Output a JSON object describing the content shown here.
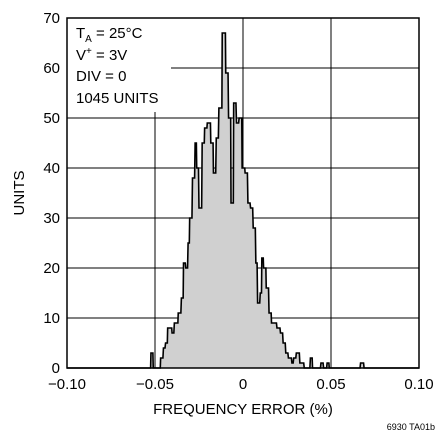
{
  "chart_data": {
    "type": "area",
    "xlabel": "FREQUENCY ERROR (%)",
    "ylabel": "UNITS",
    "xlim": [
      -0.1,
      0.1
    ],
    "ylim": [
      0,
      70
    ],
    "xticks": [
      "−0.10",
      "−0.05",
      "0",
      "0.05",
      "0.10"
    ],
    "xtick_values": [
      -0.1,
      -0.05,
      0,
      0.05,
      0.1
    ],
    "yticks": [
      "0",
      "10",
      "20",
      "30",
      "40",
      "50",
      "60",
      "70"
    ],
    "ytick_values": [
      0,
      10,
      20,
      30,
      40,
      50,
      60,
      70
    ],
    "grid": true,
    "fill_color": "#d0d0d0",
    "line_color": "#000000",
    "annotation": {
      "temp": "T",
      "temp_sub": "A",
      "temp_value": " = 25°C",
      "supply": "V",
      "supply_sup": "+",
      "supply_value": " = 3V",
      "div": "DIV = 0",
      "units": "1045 UNITS"
    },
    "figure_id": "6930 TA01b",
    "histogram": [
      [
        -0.1,
        0
      ],
      [
        -0.058,
        0
      ],
      [
        -0.0525,
        0
      ],
      [
        -0.0523,
        3
      ],
      [
        -0.0512,
        3
      ],
      [
        -0.051,
        0
      ],
      [
        -0.047,
        0
      ],
      [
        -0.0468,
        2
      ],
      [
        -0.0455,
        2
      ],
      [
        -0.0452,
        4
      ],
      [
        -0.0443,
        4
      ],
      [
        -0.044,
        5
      ],
      [
        -0.043,
        5
      ],
      [
        -0.0428,
        8
      ],
      [
        -0.0405,
        8
      ],
      [
        -0.0403,
        7
      ],
      [
        -0.0393,
        7
      ],
      [
        -0.039,
        9
      ],
      [
        -0.037,
        9
      ],
      [
        -0.0368,
        11
      ],
      [
        -0.0353,
        11
      ],
      [
        -0.035,
        14
      ],
      [
        -0.034,
        14
      ],
      [
        -0.0338,
        21
      ],
      [
        -0.0328,
        21
      ],
      [
        -0.0325,
        20
      ],
      [
        -0.0315,
        20
      ],
      [
        -0.0312,
        25
      ],
      [
        -0.0305,
        25
      ],
      [
        -0.0303,
        30
      ],
      [
        -0.029,
        30
      ],
      [
        -0.0287,
        38
      ],
      [
        -0.0275,
        38
      ],
      [
        -0.0272,
        45
      ],
      [
        -0.0265,
        45
      ],
      [
        -0.0263,
        40
      ],
      [
        -0.0253,
        40
      ],
      [
        -0.025,
        32
      ],
      [
        -0.0235,
        32
      ],
      [
        -0.0232,
        45
      ],
      [
        -0.022,
        45
      ],
      [
        -0.0218,
        48
      ],
      [
        -0.0205,
        48
      ],
      [
        -0.0203,
        49
      ],
      [
        -0.0185,
        49
      ],
      [
        -0.0183,
        45
      ],
      [
        -0.017,
        45
      ],
      [
        -0.0168,
        39
      ],
      [
        -0.0155,
        39
      ],
      [
        -0.0152,
        46
      ],
      [
        -0.014,
        46
      ],
      [
        -0.0137,
        52
      ],
      [
        -0.012,
        52
      ],
      [
        -0.0118,
        67
      ],
      [
        -0.01,
        67
      ],
      [
        -0.0098,
        59
      ],
      [
        -0.0085,
        59
      ],
      [
        -0.0082,
        50
      ],
      [
        -0.007,
        50
      ],
      [
        -0.0068,
        33
      ],
      [
        -0.0055,
        33
      ],
      [
        -0.0053,
        53
      ],
      [
        -0.004,
        53
      ],
      [
        -0.0037,
        49
      ],
      [
        -0.0025,
        49
      ],
      [
        -0.0022,
        50
      ],
      [
        -0.0007,
        50
      ],
      [
        -0.0005,
        40
      ],
      [
        0.001,
        40
      ],
      [
        0.0012,
        39
      ],
      [
        0.0025,
        39
      ],
      [
        0.0028,
        33
      ],
      [
        0.004,
        33
      ],
      [
        0.0043,
        32
      ],
      [
        0.0055,
        32
      ],
      [
        0.0058,
        28
      ],
      [
        0.007,
        28
      ],
      [
        0.0073,
        21
      ],
      [
        0.008,
        21
      ],
      [
        0.0083,
        13
      ],
      [
        0.0095,
        13
      ],
      [
        0.0098,
        15
      ],
      [
        0.0105,
        15
      ],
      [
        0.0107,
        22
      ],
      [
        0.0115,
        22
      ],
      [
        0.0117,
        20
      ],
      [
        0.013,
        20
      ],
      [
        0.0132,
        16
      ],
      [
        0.0145,
        16
      ],
      [
        0.0148,
        11
      ],
      [
        0.016,
        11
      ],
      [
        0.0162,
        9
      ],
      [
        0.0175,
        9
      ],
      [
        0.0178,
        9
      ],
      [
        0.019,
        9
      ],
      [
        0.0193,
        8
      ],
      [
        0.021,
        8
      ],
      [
        0.0213,
        7
      ],
      [
        0.0225,
        7
      ],
      [
        0.0228,
        5
      ],
      [
        0.024,
        5
      ],
      [
        0.0243,
        3
      ],
      [
        0.0255,
        3
      ],
      [
        0.0258,
        2
      ],
      [
        0.0275,
        2
      ],
      [
        0.0278,
        1
      ],
      [
        0.0285,
        1
      ],
      [
        0.0288,
        2
      ],
      [
        0.03,
        2
      ],
      [
        0.0303,
        3
      ],
      [
        0.032,
        3
      ],
      [
        0.0323,
        1
      ],
      [
        0.0345,
        1
      ],
      [
        0.0348,
        0
      ],
      [
        0.038,
        0
      ],
      [
        0.0383,
        2
      ],
      [
        0.0393,
        2
      ],
      [
        0.0395,
        0
      ],
      [
        0.044,
        0
      ],
      [
        0.0443,
        1
      ],
      [
        0.0455,
        1
      ],
      [
        0.0458,
        0
      ],
      [
        0.0475,
        0
      ],
      [
        0.0478,
        1
      ],
      [
        0.0488,
        1
      ],
      [
        0.049,
        0
      ],
      [
        0.0665,
        0
      ],
      [
        0.0668,
        1
      ],
      [
        0.0685,
        1
      ],
      [
        0.0688,
        0
      ],
      [
        0.1,
        0
      ]
    ]
  }
}
